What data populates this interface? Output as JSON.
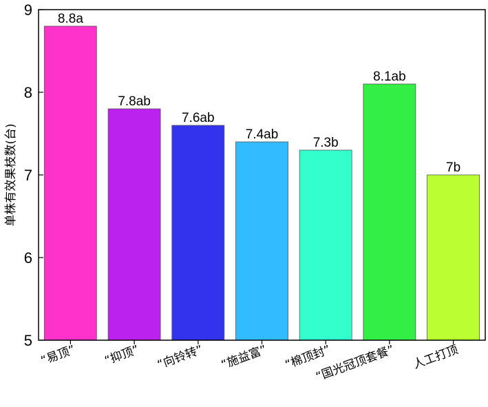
{
  "chart_data": {
    "type": "bar",
    "title": "",
    "xlabel": "",
    "ylabel": "单株有效果枝数(台)",
    "ylim": [
      5,
      9
    ],
    "yticks": [
      5,
      6,
      7,
      8,
      9
    ],
    "grid": false,
    "categories": [
      "“易顶”",
      "“抑顶”",
      "“向铃转”",
      "“施益富”",
      "“棉顶封”",
      "“国光冠顶套餐”",
      "人工打顶"
    ],
    "values": [
      8.8,
      7.8,
      7.6,
      7.4,
      7.3,
      8.1,
      7.0
    ],
    "data_labels": [
      "8.8a",
      "7.8ab",
      "7.6ab",
      "7.4ab",
      "7.3b",
      "8.1ab",
      "7b"
    ],
    "colors": [
      "#FF33CC",
      "#BB22EE",
      "#3333EE",
      "#33BBFF",
      "#33FFCC",
      "#33EE44",
      "#BBFF33"
    ]
  }
}
